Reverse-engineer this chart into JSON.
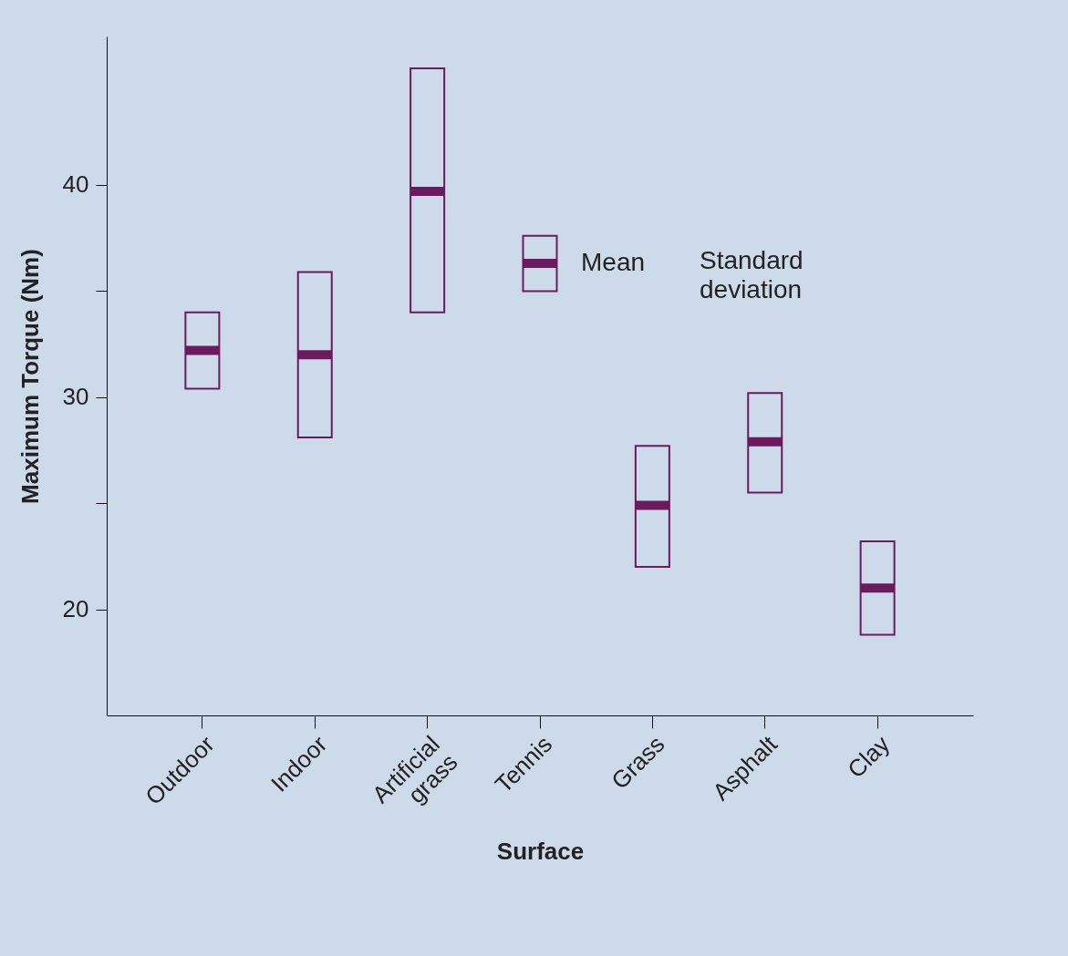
{
  "chart_data": {
    "type": "box",
    "xlabel": "Surface",
    "ylabel": "Maximum Torque (Nm)",
    "categories": [
      "Outdoor",
      "Indoor",
      "Artificial grass",
      "Tennis",
      "Grass",
      "Asphalt",
      "Clay"
    ],
    "color": "#6b1a5e",
    "boxes": [
      {
        "low": 30.4,
        "q1": 30.4,
        "median": 32.2,
        "q3": 34.0,
        "high": 34.0
      },
      {
        "low": 28.1,
        "q1": 28.1,
        "median": 32.0,
        "q3": 35.9,
        "high": 35.9
      },
      {
        "low": 34.0,
        "q1": 34.0,
        "median": 39.7,
        "q3": 45.5,
        "high": 45.5
      },
      {
        "low": 35.0,
        "q1": 35.0,
        "median": 36.3,
        "q3": 37.6,
        "high": 37.6
      },
      {
        "low": 22.0,
        "q1": 22.0,
        "median": 24.9,
        "q3": 27.7,
        "high": 27.7
      },
      {
        "low": 25.5,
        "q1": 25.5,
        "median": 27.9,
        "q3": 30.2,
        "high": 30.2
      },
      {
        "low": 18.8,
        "q1": 18.8,
        "median": 21.0,
        "q3": 23.2,
        "high": 23.2
      }
    ],
    "ylim": [
      15,
      47
    ],
    "yticks": [
      20,
      {
        "value": 25,
        "label": null
      },
      30,
      {
        "value": 35,
        "label": null
      },
      40
    ],
    "annotations": [
      {
        "text": "Mean",
        "x": "Tennis",
        "y": 36.3
      },
      "Standard deviation"
    ]
  }
}
